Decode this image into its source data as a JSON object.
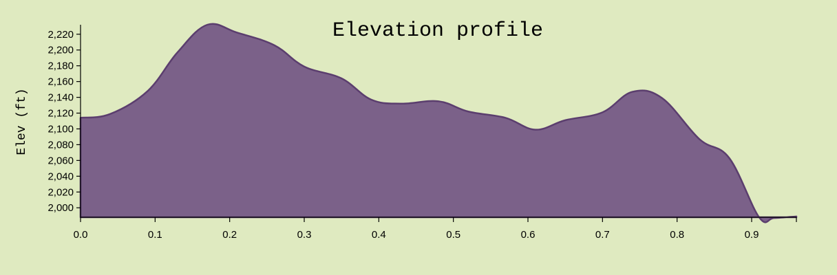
{
  "chart_data": {
    "type": "area",
    "title": "Elevation profile",
    "xlabel": "",
    "ylabel": "Elev (ft)",
    "xlim": [
      0,
      0.96
    ],
    "ylim": [
      1988,
      2232
    ],
    "x_ticks": [
      0.0,
      0.1,
      0.2,
      0.3,
      0.4,
      0.5,
      0.6,
      0.7,
      0.8,
      0.9
    ],
    "x_tick_labels": [
      "0.0",
      "0.1",
      "0.2",
      "0.3",
      "0.4",
      "0.5",
      "0.6",
      "0.7",
      "0.8",
      "0.9"
    ],
    "y_ticks": [
      2000,
      2020,
      2040,
      2060,
      2080,
      2100,
      2120,
      2140,
      2160,
      2180,
      2200,
      2220
    ],
    "y_tick_labels": [
      "2,000",
      "2,020",
      "2,040",
      "2,060",
      "2,080",
      "2,100",
      "2,120",
      "2,140",
      "2,160",
      "2,180",
      "2,200",
      "2,220"
    ],
    "grid": false,
    "legend": "none",
    "color": "#7b6189",
    "line_color": "#5b3e6e",
    "series": [
      {
        "x": [
          0.0,
          0.04,
          0.09,
          0.13,
          0.17,
          0.21,
          0.26,
          0.3,
          0.35,
          0.39,
          0.43,
          0.48,
          0.52,
          0.57,
          0.61,
          0.65,
          0.7,
          0.74,
          0.78,
          0.83,
          0.87,
          0.91,
          0.93,
          0.96
        ],
        "y": [
          2114,
          2119,
          2148,
          2197,
          2232,
          2222,
          2206,
          2179,
          2164,
          2137,
          2132,
          2135,
          2122,
          2114,
          2099,
          2111,
          2121,
          2147,
          2139,
          2087,
          2063,
          1988,
          1987,
          1989
        ]
      }
    ]
  }
}
